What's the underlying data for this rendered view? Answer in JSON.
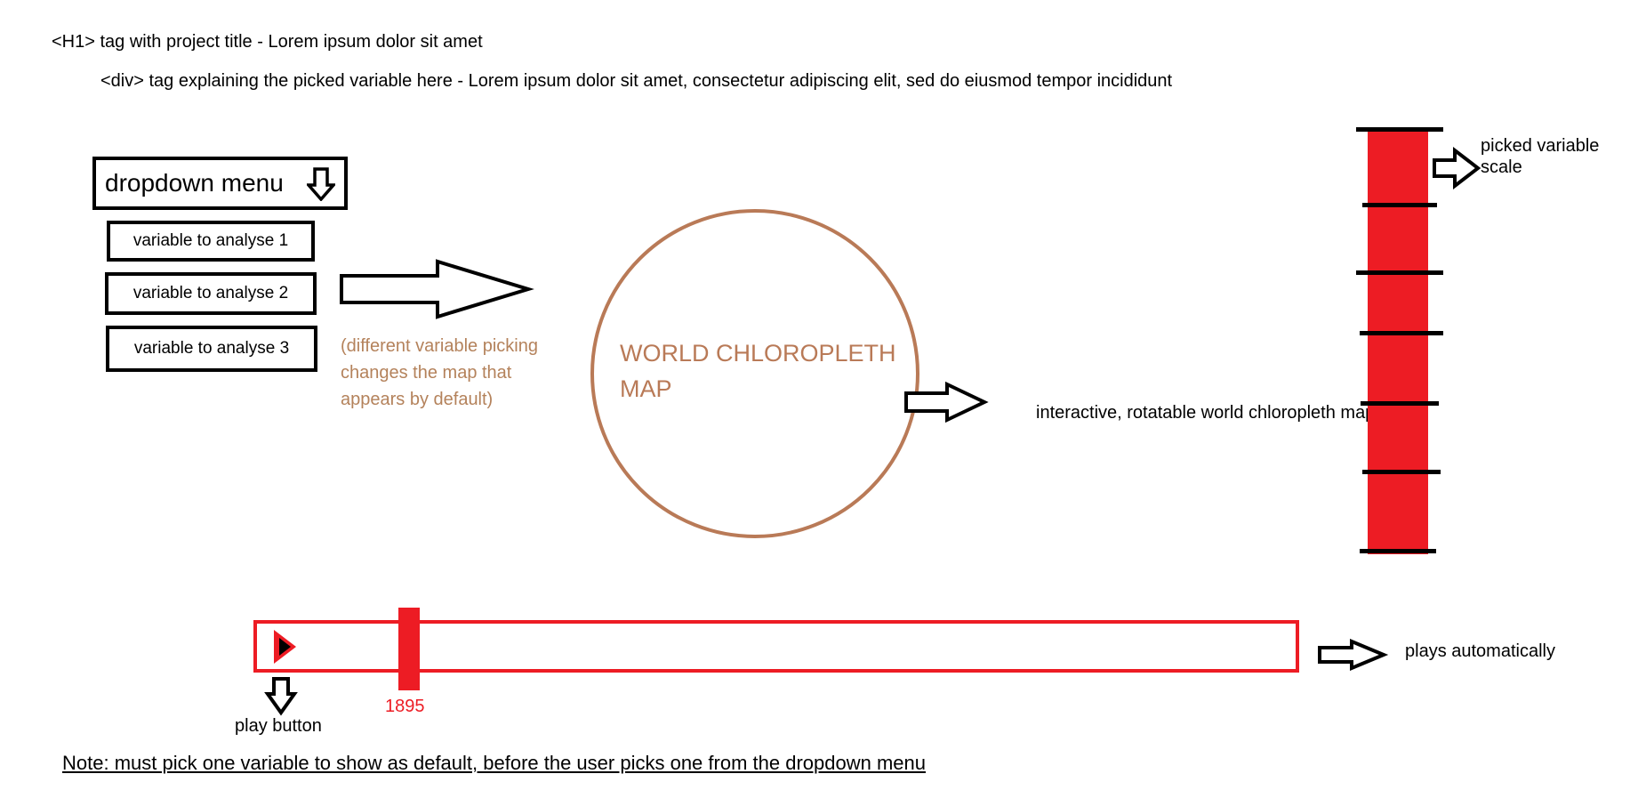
{
  "header": {
    "h1_note": "<H1> tag with project title - Lorem ipsum dolor sit amet",
    "div_note": "<div> tag explaining the picked variable here - Lorem ipsum dolor sit amet, consectetur adipiscing elit, sed do eiusmod tempor incididunt"
  },
  "dropdown": {
    "label": "dropdown menu",
    "icon": "arrow-down-icon",
    "options": [
      "variable to analyse 1",
      "variable to analyse 2",
      "variable to analyse 3"
    ]
  },
  "annotations": {
    "variable_note": "(different variable picking changes the map that appears by default)",
    "map_label": "WORLD CHLOROPLETH MAP",
    "map_caption": "interactive, rotatable world chloropleth map",
    "scale_caption": "picked variable scale",
    "autoplay_caption": "plays automatically",
    "play_caption": "play button",
    "footnote": "Note: must pick one variable to show as default, before the user picks one from the dropdown menu"
  },
  "timeline": {
    "year": "1895",
    "play_icon": "play-icon"
  },
  "colors": {
    "accent_red": "#ed1c24",
    "map_brown": "#b97a57",
    "note_brown": "#b4825b"
  }
}
